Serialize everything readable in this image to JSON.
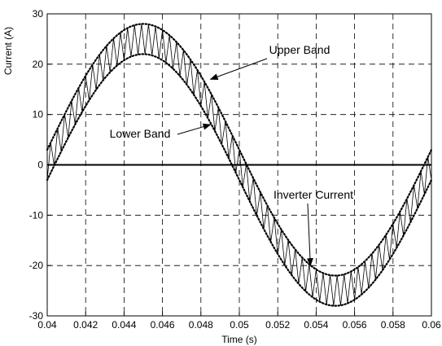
{
  "chart_data": {
    "type": "line",
    "xlabel": "Time (s)",
    "ylabel": "Current (A)",
    "xlim": [
      0.04,
      0.06
    ],
    "ylim": [
      -30,
      30
    ],
    "xticks": [
      "0.04",
      "0.042",
      "0.044",
      "0.046",
      "0.048",
      "0.05",
      "0.052",
      "0.054",
      "0.056",
      "0.058",
      "0.06"
    ],
    "yticks": [
      "30",
      "20",
      "10",
      "0",
      "-10",
      "-20",
      "-30"
    ],
    "grid": "dashed",
    "series": [
      {
        "name": "Upper Band",
        "style": "dotted",
        "x": [
          0.04,
          0.0425,
          0.045,
          0.0475,
          0.05,
          0.0525,
          0.055,
          0.0575,
          0.06
        ],
        "y": [
          3,
          20.0,
          28,
          20.0,
          3,
          -14.0,
          -22,
          -14.0,
          3
        ]
      },
      {
        "name": "Lower Band",
        "style": "dotted",
        "x": [
          0.04,
          0.0425,
          0.045,
          0.0475,
          0.05,
          0.0525,
          0.055,
          0.0575,
          0.06
        ],
        "y": [
          -3,
          14.0,
          22,
          14.0,
          -3,
          -20.0,
          -28,
          -20.0,
          -3
        ]
      },
      {
        "name": "Inverter Current",
        "style": "solid",
        "amplitude": 25,
        "hysteresis_band": 3,
        "switching_cycles": 55
      }
    ],
    "annotations": [
      {
        "text": "Upper Band",
        "points_to": [
          0.0485,
          17
        ]
      },
      {
        "text": "Lower Band",
        "points_to": [
          0.0485,
          8
        ]
      },
      {
        "text": "Inverter Current",
        "points_to": [
          0.0537,
          -20
        ]
      }
    ]
  }
}
